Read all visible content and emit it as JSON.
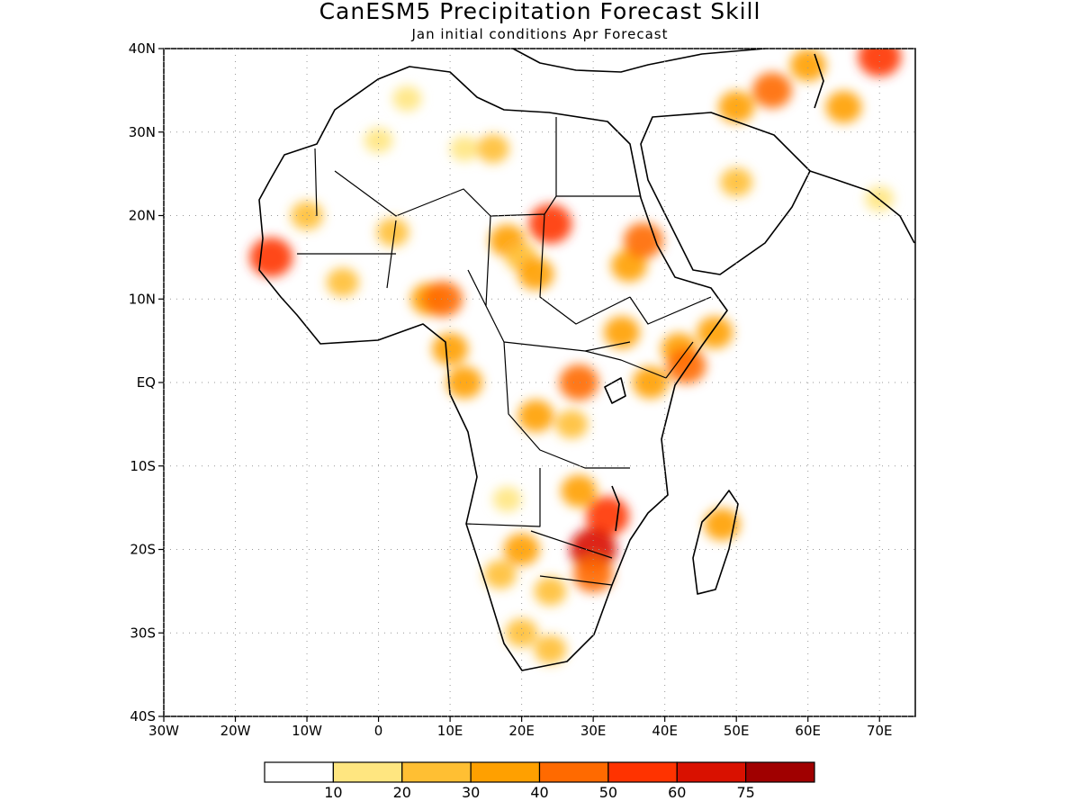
{
  "title": "CanESM5 Precipitation Forecast Skill",
  "subtitle": "Jan initial conditions  Apr Forecast",
  "map": {
    "lon_range": [
      -30,
      75
    ],
    "lat_range": [
      -40,
      40
    ],
    "x_ticks": [
      {
        "value": -30,
        "label": "30W"
      },
      {
        "value": -20,
        "label": "20W"
      },
      {
        "value": -10,
        "label": "10W"
      },
      {
        "value": 0,
        "label": "0"
      },
      {
        "value": 10,
        "label": "10E"
      },
      {
        "value": 20,
        "label": "20E"
      },
      {
        "value": 30,
        "label": "30E"
      },
      {
        "value": 40,
        "label": "40E"
      },
      {
        "value": 50,
        "label": "50E"
      },
      {
        "value": 60,
        "label": "60E"
      },
      {
        "value": 70,
        "label": "70E"
      }
    ],
    "y_ticks": [
      {
        "value": 40,
        "label": "40N"
      },
      {
        "value": 30,
        "label": "30N"
      },
      {
        "value": 20,
        "label": "20N"
      },
      {
        "value": 10,
        "label": "10N"
      },
      {
        "value": 0,
        "label": "EQ"
      },
      {
        "value": -10,
        "label": "10S"
      },
      {
        "value": -20,
        "label": "20S"
      },
      {
        "value": -30,
        "label": "30S"
      },
      {
        "value": -40,
        "label": "40S"
      }
    ],
    "grid": "dotted"
  },
  "colorbar": {
    "labels": [
      "10",
      "20",
      "30",
      "40",
      "50",
      "60",
      "75"
    ],
    "colors": [
      "#ffffff",
      "#ffe680",
      "#ffbf33",
      "#ffa000",
      "#ff6a00",
      "#ff3300",
      "#d91100",
      "#a00000"
    ]
  },
  "skill_regions": [
    {
      "lon": -15,
      "lat": 15,
      "level": 5
    },
    {
      "lon": -10,
      "lat": 20,
      "level": 2
    },
    {
      "lon": -5,
      "lat": 12,
      "level": 2
    },
    {
      "lon": 2,
      "lat": 18,
      "level": 2
    },
    {
      "lon": 4,
      "lat": 34,
      "level": 1
    },
    {
      "lon": 0,
      "lat": 29,
      "level": 1
    },
    {
      "lon": 12,
      "lat": 28,
      "level": 1
    },
    {
      "lon": 16,
      "lat": 28,
      "level": 2
    },
    {
      "lon": 7,
      "lat": 10,
      "level": 3
    },
    {
      "lon": 9,
      "lat": 10,
      "level": 4
    },
    {
      "lon": 10,
      "lat": 4,
      "level": 3
    },
    {
      "lon": 12,
      "lat": 0,
      "level": 3
    },
    {
      "lon": 18,
      "lat": 17,
      "level": 3
    },
    {
      "lon": 20,
      "lat": 15,
      "level": 2
    },
    {
      "lon": 24,
      "lat": 19,
      "level": 5
    },
    {
      "lon": 22,
      "lat": 13,
      "level": 3
    },
    {
      "lon": 35,
      "lat": 14,
      "level": 3
    },
    {
      "lon": 37,
      "lat": 17,
      "level": 4
    },
    {
      "lon": 34,
      "lat": 6,
      "level": 3
    },
    {
      "lon": 42,
      "lat": 4,
      "level": 3
    },
    {
      "lon": 47,
      "lat": 6,
      "level": 3
    },
    {
      "lon": 43,
      "lat": 2,
      "level": 4
    },
    {
      "lon": 38,
      "lat": 0,
      "level": 3
    },
    {
      "lon": 28,
      "lat": 0,
      "level": 4
    },
    {
      "lon": 27,
      "lat": -5,
      "level": 2
    },
    {
      "lon": 22,
      "lat": -4,
      "level": 3
    },
    {
      "lon": 32,
      "lat": -16,
      "level": 5
    },
    {
      "lon": 30,
      "lat": -20,
      "level": 6
    },
    {
      "lon": 30,
      "lat": -23,
      "level": 4
    },
    {
      "lon": 28,
      "lat": -13,
      "level": 3
    },
    {
      "lon": 20,
      "lat": -20,
      "level": 3
    },
    {
      "lon": 17,
      "lat": -23,
      "level": 2
    },
    {
      "lon": 24,
      "lat": -25,
      "level": 2
    },
    {
      "lon": 20,
      "lat": -30,
      "level": 2
    },
    {
      "lon": 24,
      "lat": -32,
      "level": 2
    },
    {
      "lon": 48,
      "lat": -17,
      "level": 3
    },
    {
      "lon": 18,
      "lat": -14,
      "level": 1
    },
    {
      "lon": 50,
      "lat": 24,
      "level": 2
    },
    {
      "lon": 55,
      "lat": 35,
      "level": 4
    },
    {
      "lon": 50,
      "lat": 33,
      "level": 3
    },
    {
      "lon": 65,
      "lat": 33,
      "level": 3
    },
    {
      "lon": 70,
      "lat": 39,
      "level": 5
    },
    {
      "lon": 60,
      "lat": 38,
      "level": 3
    },
    {
      "lon": 70,
      "lat": 22,
      "level": 1
    }
  ]
}
